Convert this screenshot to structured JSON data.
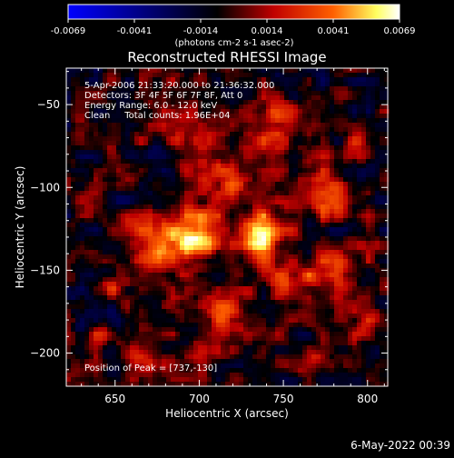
{
  "chart_data": {
    "type": "heatmap",
    "title": "Reconstructed RHESSI Image",
    "xlabel": "Heliocentric X (arcsec)",
    "ylabel": "Heliocentric Y (arcsec)",
    "xlim": [
      621,
      812
    ],
    "ylim": [
      -220,
      -28
    ],
    "x_ticks": [
      650,
      700,
      750,
      800
    ],
    "y_ticks": [
      -50,
      -100,
      -150,
      -200
    ],
    "colorbar": {
      "range": [
        -0.0069,
        0.0069
      ],
      "ticks": [
        "-0.0069",
        "-0.0041",
        "-0.0014",
        "0.0014",
        "0.0041",
        "0.0069"
      ],
      "unit_label": "(photons cm-2 s-1 asec-2)"
    },
    "annotations": [
      "5-Apr-2006 21:33:20.000 to 21:36:32.000",
      "Detectors: 3F 4F 5F 6F 7F 8F, Att 0",
      "Energy Range: 6.0 - 12.0 keV",
      "Clean     Total counts: 1.96E+04"
    ],
    "peak_label": "Position of Peak = [737,-130]",
    "peak": [
      737,
      -130
    ],
    "footer_date": "6-May-2022 00:39",
    "sources": [
      {
        "x": 737,
        "y": -130,
        "amp": 0.0069,
        "sx": 9,
        "sy": 10
      },
      {
        "x": 697,
        "y": -128,
        "amp": 0.0062,
        "sx": 12,
        "sy": 11
      },
      {
        "x": 680,
        "y": -140,
        "amp": 0.0036,
        "sx": 10,
        "sy": 9
      },
      {
        "x": 745,
        "y": -60,
        "amp": 0.004,
        "sx": 8,
        "sy": 12
      },
      {
        "x": 710,
        "y": -95,
        "amp": 0.0034,
        "sx": 14,
        "sy": 10
      },
      {
        "x": 775,
        "y": -105,
        "amp": 0.004,
        "sx": 9,
        "sy": 10
      },
      {
        "x": 780,
        "y": -150,
        "amp": 0.0036,
        "sx": 9,
        "sy": 10
      },
      {
        "x": 755,
        "y": -160,
        "amp": 0.0033,
        "sx": 12,
        "sy": 10
      },
      {
        "x": 715,
        "y": -175,
        "amp": 0.0032,
        "sx": 12,
        "sy": 9
      },
      {
        "x": 690,
        "y": -65,
        "amp": 0.003,
        "sx": 10,
        "sy": 10
      },
      {
        "x": 660,
        "y": -125,
        "amp": 0.0026,
        "sx": 8,
        "sy": 8
      },
      {
        "x": 650,
        "y": -160,
        "amp": 0.003,
        "sx": 6,
        "sy": 6
      },
      {
        "x": 665,
        "y": -205,
        "amp": 0.0024,
        "sx": 7,
        "sy": 6
      },
      {
        "x": 700,
        "y": -200,
        "amp": 0.0022,
        "sx": 9,
        "sy": 6
      },
      {
        "x": 795,
        "y": -75,
        "amp": 0.0022,
        "sx": 7,
        "sy": 8
      },
      {
        "x": 640,
        "y": -190,
        "amp": 0.0018,
        "sx": 6,
        "sy": 6
      },
      {
        "x": 770,
        "y": -205,
        "amp": 0.002,
        "sx": 8,
        "sy": 6
      },
      {
        "x": 800,
        "y": -180,
        "amp": 0.0018,
        "sx": 6,
        "sy": 7
      }
    ],
    "colors": {
      "background": "#000000",
      "foreground": "#ffffff",
      "colormap": [
        "#0000ff",
        "#000000",
        "#c00000",
        "#ff6000",
        "#ffff60",
        "#ffffff"
      ]
    }
  }
}
